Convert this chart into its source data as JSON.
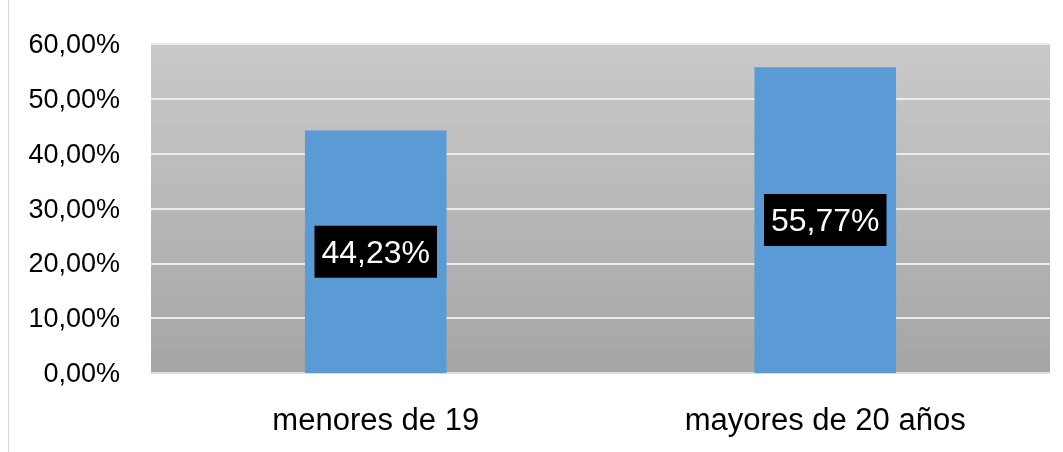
{
  "chart_data": {
    "type": "bar",
    "categories": [
      "menores de 19",
      "mayores de 20 años"
    ],
    "values": [
      44.23,
      55.77
    ],
    "color": "#5b9bd5",
    "value_labels": [
      "44,23%",
      "55,77%"
    ],
    "ylim": [
      0,
      60
    ],
    "yticks": [
      {
        "value": 0,
        "label": "0,00%"
      },
      {
        "value": 10,
        "label": "10,00%"
      },
      {
        "value": 20,
        "label": "20,00%"
      },
      {
        "value": 30,
        "label": "30,00%"
      },
      {
        "value": 40,
        "label": "40,00%"
      },
      {
        "value": 50,
        "label": "50,00%"
      },
      {
        "value": 60,
        "label": "60,00%"
      }
    ],
    "grid": "y"
  }
}
